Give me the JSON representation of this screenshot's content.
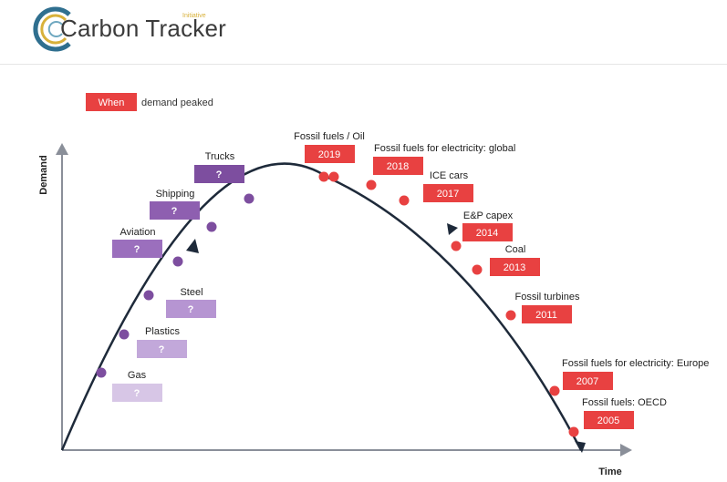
{
  "header": {
    "logo_text": "Carbon Tracker",
    "logo_subtext": "Initiative"
  },
  "legend": {
    "box_label": "When",
    "text": "demand peaked"
  },
  "axes": {
    "y_label": "Demand",
    "x_label": "Time"
  },
  "colors": {
    "red": "#e84141",
    "purple_dark": "#7d4e9f",
    "purple_mid": "#9b6fbd",
    "purple_light": "#c2a8da",
    "purple_pale": "#d7c6e6",
    "axis": "#8a8f99",
    "curve": "#1e2a3a"
  },
  "rising": [
    {
      "name": "Trucks",
      "label": "?"
    },
    {
      "name": "Shipping",
      "label": "?"
    },
    {
      "name": "Aviation",
      "label": "?"
    },
    {
      "name": "Steel",
      "label": "?"
    },
    {
      "name": "Plastics",
      "label": "?"
    },
    {
      "name": "Gas",
      "label": "?"
    }
  ],
  "peaked": [
    {
      "name": "Fossil fuels / Oil",
      "year": "2019"
    },
    {
      "name": "Fossil fuels for electricity: global",
      "year": "2018"
    },
    {
      "name": "ICE cars",
      "year": "2017"
    },
    {
      "name": "E&P capex",
      "year": "2014"
    },
    {
      "name": "Coal",
      "year": "2013"
    },
    {
      "name": "Fossil turbines",
      "year": "2011"
    },
    {
      "name": "Fossil fuels for electricity: Europe",
      "year": "2007"
    },
    {
      "name": "Fossil fuels: OECD",
      "year": "2005"
    }
  ]
}
